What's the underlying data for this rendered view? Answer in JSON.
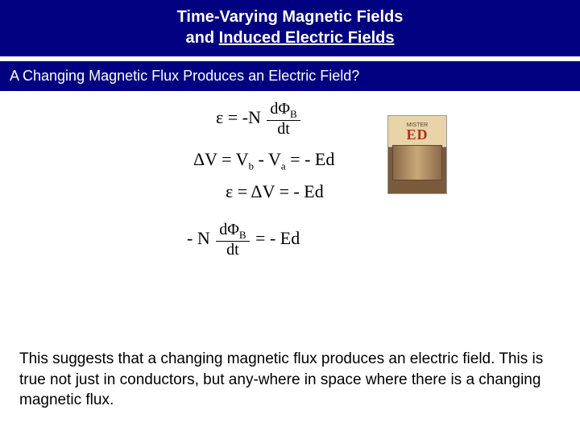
{
  "title": {
    "line1": "Time-Varying Magnetic Fields",
    "line2_prefix": "and ",
    "line2_underlined": "Induced Electric Fields"
  },
  "subtitle": "A Changing Magnetic Flux Produces an Electric Field?",
  "equations": {
    "eq1_lhs": "ε = -N",
    "eq1_num": "dΦ",
    "eq1_num_sub": "B",
    "eq1_den": "dt",
    "eq2": "ΔV = V",
    "eq2_sub_b": "b",
    "eq2_mid": " - V",
    "eq2_sub_a": "a",
    "eq2_rhs": " = - Ed",
    "eq3": "ε = ΔV = - Ed",
    "eq4_lhs": "- N",
    "eq4_num": "dΦ",
    "eq4_num_sub": "B",
    "eq4_den": "dt",
    "eq4_rhs": " = - Ed"
  },
  "poster": {
    "top_text": "MISTER",
    "title": "ED"
  },
  "body": "This suggests that a changing magnetic flux produces an electric field. This is true not just in conductors, but any-where in space where there is a changing magnetic flux.",
  "colors": {
    "header_bg": "#000080",
    "header_text": "#ffffff",
    "body_text": "#000000",
    "background": "#ffffff"
  },
  "fonts": {
    "title_size_pt": 20,
    "subtitle_size_pt": 18,
    "equation_size_pt": 22,
    "body_size_pt": 19
  }
}
